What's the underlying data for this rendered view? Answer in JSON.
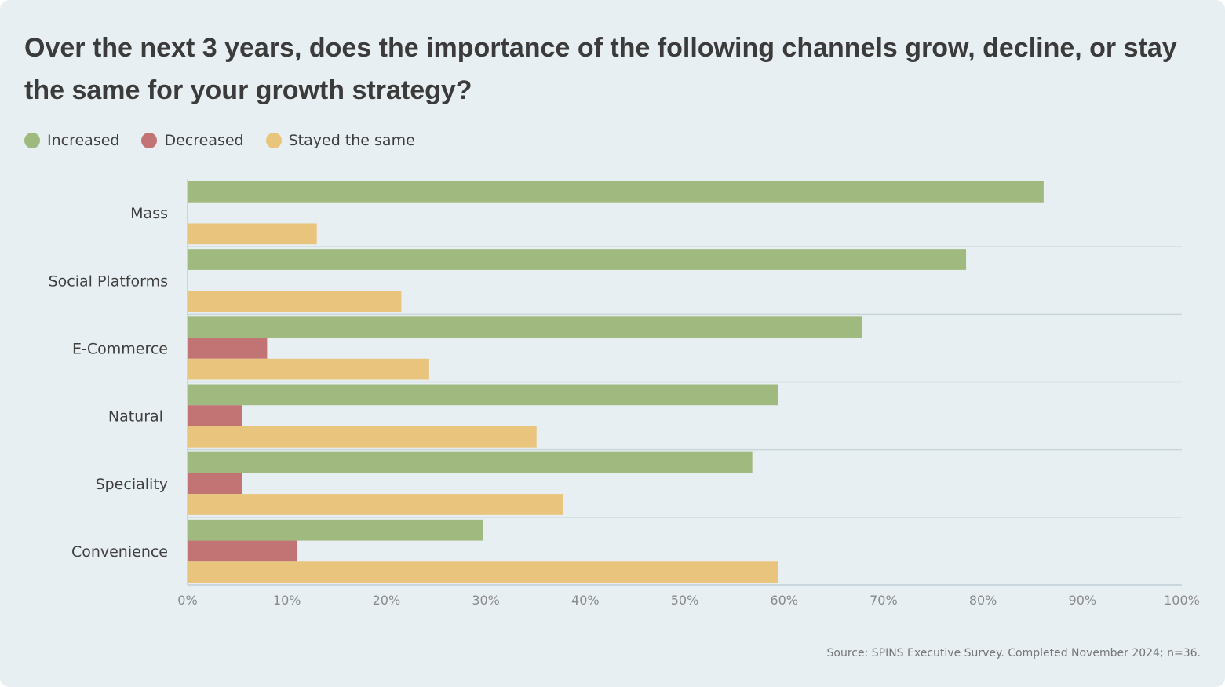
{
  "chart_data": {
    "type": "bar",
    "orientation": "horizontal",
    "title": "Over the next 3 years, does the importance of the following channels grow, decline, or stay the same for your growth strategy?",
    "categories": [
      "Mass",
      "Social Platforms",
      "E-Commerce",
      "Natural ",
      "Speciality",
      "Convenience"
    ],
    "series": [
      {
        "name": "Increased",
        "color": "#9fb97f",
        "values": [
          86.1,
          78.3,
          67.8,
          59.4,
          56.8,
          29.7
        ]
      },
      {
        "name": "Decreased",
        "color": "#c27373",
        "values": [
          0,
          0,
          8.0,
          5.5,
          5.5,
          11.0
        ]
      },
      {
        "name": "Stayed the same",
        "color": "#e8c47c",
        "values": [
          13.0,
          21.5,
          24.3,
          35.1,
          37.8,
          59.4
        ]
      }
    ],
    "xlim": [
      0,
      100
    ],
    "xticks": [
      "0%",
      "10%",
      "20%",
      "30%",
      "40%",
      "50%",
      "60%",
      "70%",
      "80%",
      "90%",
      "100%"
    ],
    "xlabel": "",
    "ylabel": "",
    "legend_position": "top-left",
    "grid": "horizontal separators between categories"
  },
  "source": "Source: SPINS Executive Survey. Completed November 2024; n=36."
}
